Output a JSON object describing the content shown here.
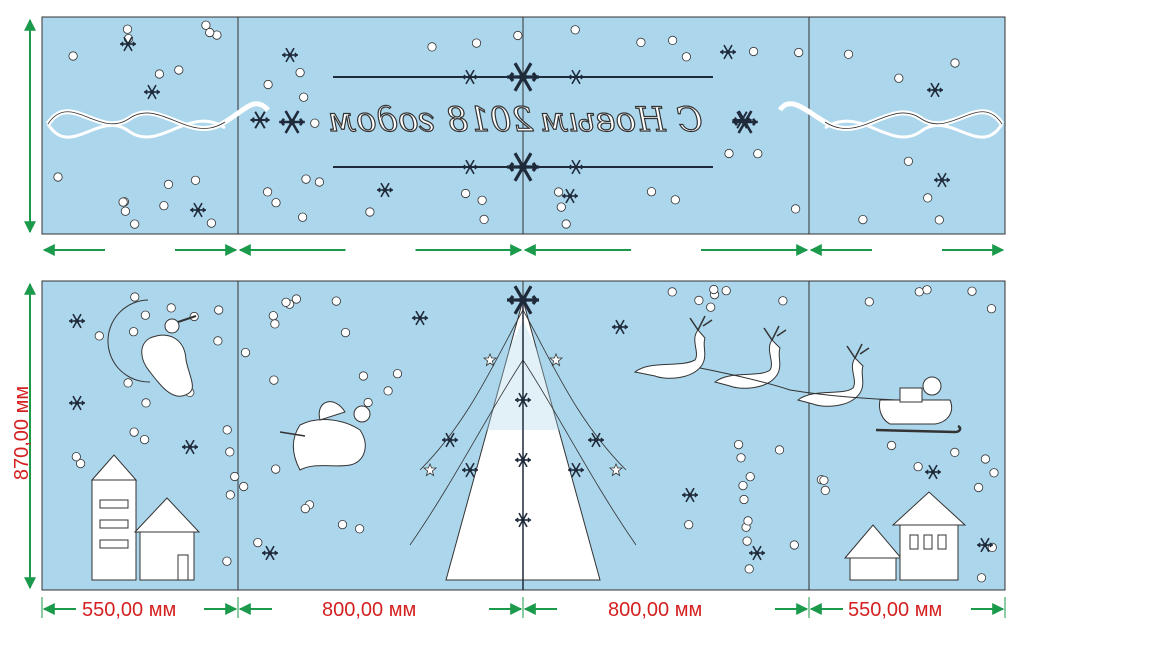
{
  "drawing": {
    "colors": {
      "panel_fill": "#acd6ec",
      "panel_stroke": "#333333",
      "arrow": "#1a9a4a",
      "dimension_text": "#d42020",
      "ornament_dark": "#1f2a3a",
      "ornament_light": "#ffffff"
    },
    "top_strip": {
      "greeting_line1": "С Новым",
      "greeting_line2": "2018 годом",
      "mirrored": true
    },
    "bottom_strip": {
      "height_label": "870,00 мм"
    },
    "segments": [
      {
        "name": "left-panel",
        "width_label": "550,00 мм"
      },
      {
        "name": "center-left-panel",
        "width_label": "800,00 мм"
      },
      {
        "name": "center-right-panel",
        "width_label": "800,00 мм"
      },
      {
        "name": "right-panel",
        "width_label": "550,00 мм"
      }
    ],
    "icons": {
      "tree": "christmas-tree-icon",
      "angel": "angel-icon",
      "reindeer": "reindeer-icon",
      "sleigh": "santa-sleigh-icon",
      "house": "house-icon",
      "moon": "moon-icon",
      "snowflake": "snowflake-icon"
    }
  }
}
